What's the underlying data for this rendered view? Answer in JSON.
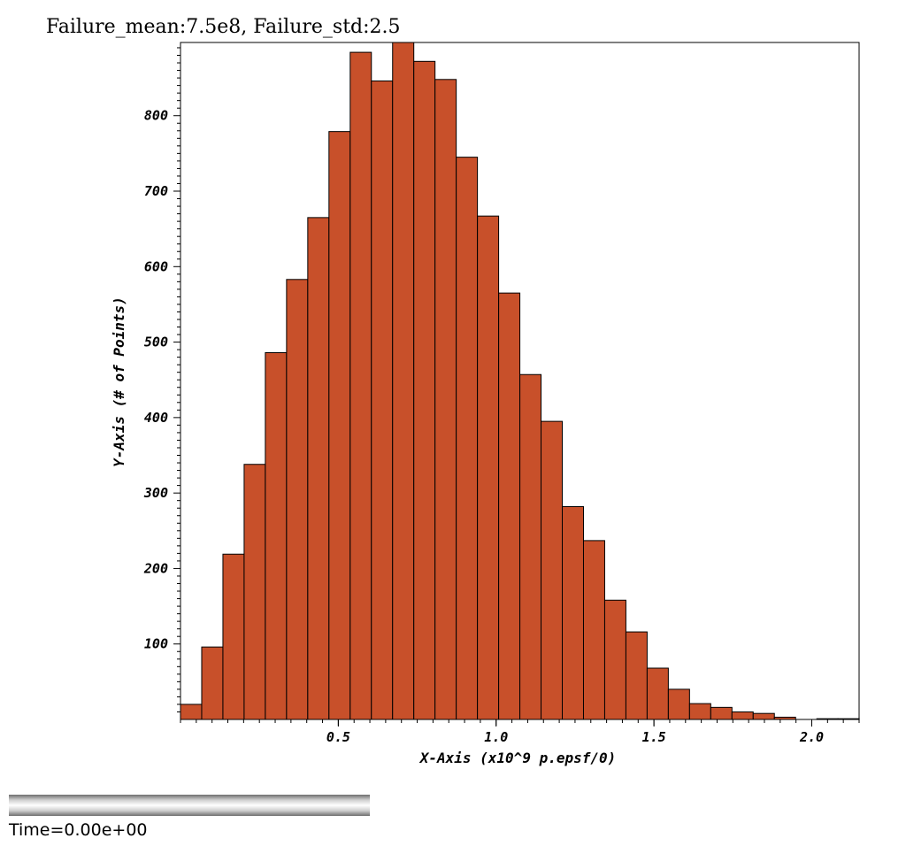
{
  "title": "Failure_mean:7.5e8, Failure_std:2.5",
  "time_label": "Time=0.00e+00",
  "colors": {
    "bar_fill": "#c8502a",
    "bar_stroke": "#000000",
    "axis": "#000000"
  },
  "chart_data": {
    "type": "bar",
    "title": "Failure_mean:7.5e8, Failure_std:2.5",
    "xlabel": "X-Axis (x10^9 p.epsf/0)",
    "ylabel": "Y-Axis (# of Points)",
    "xlim": [
      0,
      2.15
    ],
    "ylim": [
      0,
      897
    ],
    "x_ticks": [
      {
        "value": 0.5,
        "label": "0.5"
      },
      {
        "value": 1.0,
        "label": "1.0"
      },
      {
        "value": 1.5,
        "label": "1.5"
      },
      {
        "value": 2.0,
        "label": "2.0"
      }
    ],
    "y_ticks": [
      {
        "value": 100,
        "label": "100"
      },
      {
        "value": 200,
        "label": "200"
      },
      {
        "value": 300,
        "label": "300"
      },
      {
        "value": 400,
        "label": "400"
      },
      {
        "value": 500,
        "label": "500"
      },
      {
        "value": 600,
        "label": "600"
      },
      {
        "value": 700,
        "label": "700"
      },
      {
        "value": 800,
        "label": "800"
      }
    ],
    "bin_width": 0.0672,
    "bin_starts": [
      0.0,
      0.0672,
      0.1344,
      0.2016,
      0.2688,
      0.336,
      0.4032,
      0.4704,
      0.5376,
      0.6048,
      0.672,
      0.7392,
      0.8064,
      0.8736,
      0.9408,
      1.008,
      1.0752,
      1.1424,
      1.2096,
      1.2768,
      1.344,
      1.4112,
      1.4784,
      1.5456,
      1.6128,
      1.68,
      1.7472,
      1.8144,
      1.8816,
      1.9488,
      2.016,
      2.0832
    ],
    "values": [
      20,
      96,
      219,
      338,
      486,
      583,
      665,
      779,
      884,
      846,
      897,
      872,
      848,
      745,
      667,
      565,
      457,
      395,
      282,
      237,
      158,
      116,
      68,
      40,
      21,
      16,
      10,
      8,
      3,
      0,
      1,
      1
    ],
    "grid": false,
    "legend": "none"
  }
}
